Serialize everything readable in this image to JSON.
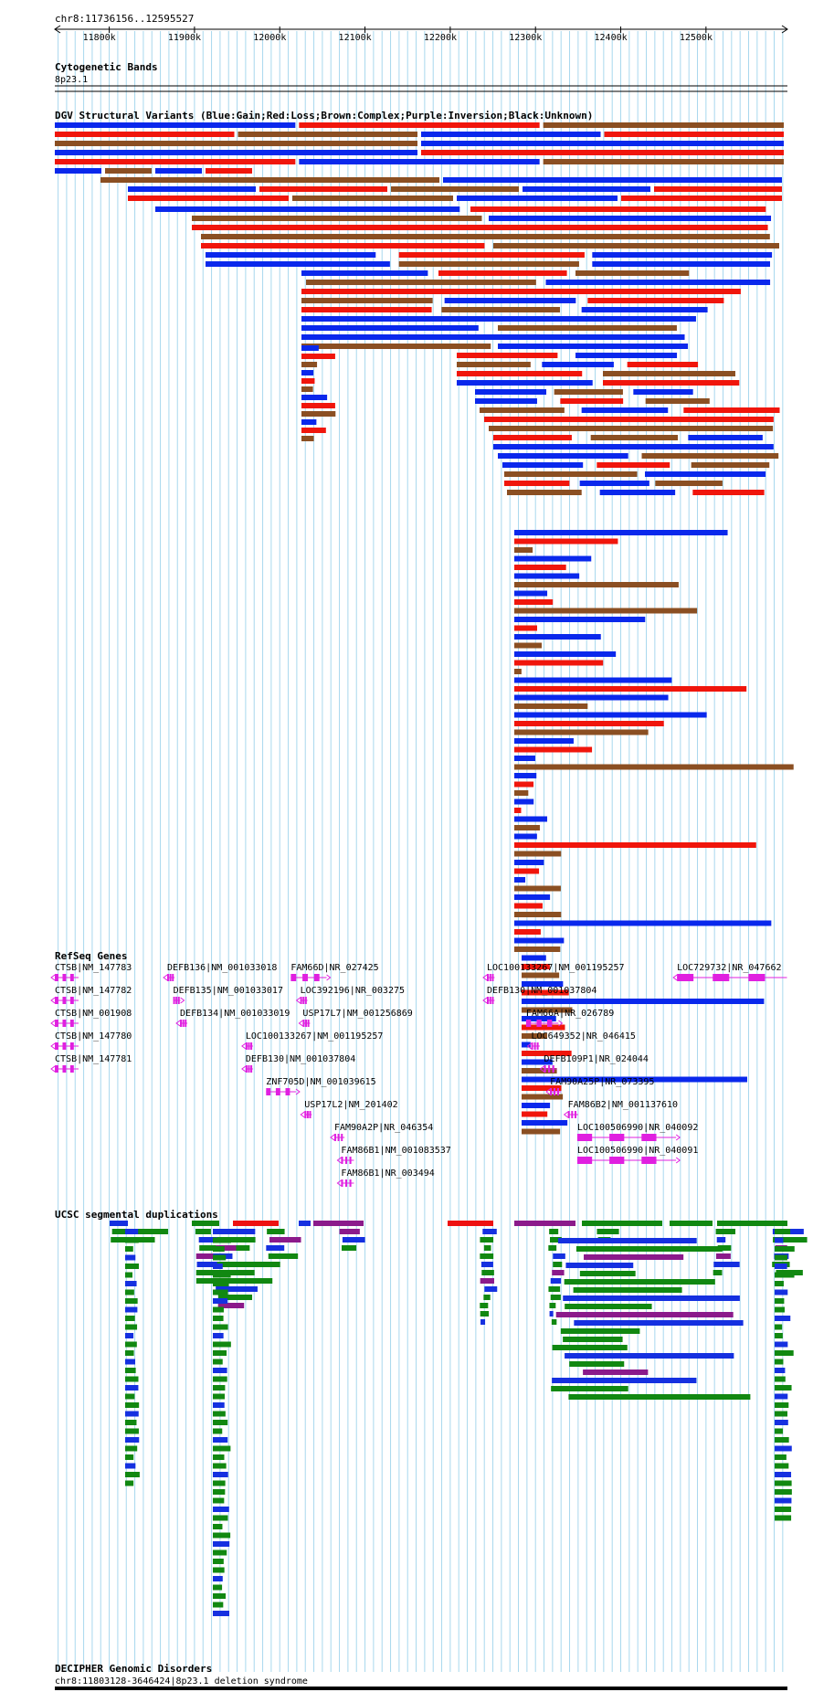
{
  "ruler": {
    "region_label": "chr8:11736156..12595527",
    "region_start_bp": 11736156,
    "region_end_bp": 12595527,
    "ticks": [
      {
        "bp": 11800000,
        "label": "11800k"
      },
      {
        "bp": 11900000,
        "label": "11900k"
      },
      {
        "bp": 12000000,
        "label": "12000k"
      },
      {
        "bp": 12100000,
        "label": "12100k"
      },
      {
        "bp": 12200000,
        "label": "12200k"
      },
      {
        "bp": 12300000,
        "label": "12300k"
      },
      {
        "bp": 12400000,
        "label": "12400k"
      },
      {
        "bp": 12500000,
        "label": "12500k"
      }
    ]
  },
  "cytoband": {
    "title": "Cytogenetic Bands",
    "band": "8p23.1"
  },
  "dgv": {
    "title": "DGV Structural Variants (Blue:Gain;Red:Loss;Brown:Complex;Purple:Inversion;Black:Unknown)",
    "colors": {
      "gain": "#0a28ec",
      "loss": "#f0160c",
      "complex": "#8b4f22",
      "inversion": "#8b1a8b",
      "unknown": "#000000"
    }
  },
  "refseq": {
    "title": "RefSeq Genes",
    "color": "#e020e0",
    "genes": [
      {
        "label": "CTSB|NM_147783",
        "start": 11736200,
        "end": 11764000,
        "strand": "-"
      },
      {
        "label": "CTSB|NM_147782",
        "start": 11736200,
        "end": 11764000,
        "strand": "-"
      },
      {
        "label": "CTSB|NM_001908",
        "start": 11736200,
        "end": 11764000,
        "strand": "-"
      },
      {
        "label": "CTSB|NM_147780",
        "start": 11736200,
        "end": 11764000,
        "strand": "-"
      },
      {
        "label": "CTSB|NM_147781",
        "start": 11736200,
        "end": 11764000,
        "strand": "-"
      },
      {
        "label": "DEFB136|NM_001033018",
        "start": 11868000,
        "end": 11871000,
        "strand": "-"
      },
      {
        "label": "DEFB135|NM_001033017",
        "start": 11875000,
        "end": 11878500,
        "strand": "+"
      },
      {
        "label": "DEFB134|NM_001033019",
        "start": 11883000,
        "end": 11887000,
        "strand": "-"
      },
      {
        "label": "LOC100133267|NM_001195257",
        "start": 11960000,
        "end": 11966000,
        "strand": "-"
      },
      {
        "label": "DEFB130|NM_001037804",
        "start": 11960000,
        "end": 11966000,
        "strand": "-"
      },
      {
        "label": "ZNF705D|NM_001039615",
        "start": 11984000,
        "end": 12019000,
        "strand": "+"
      },
      {
        "label": "FAM66D|NR_027425",
        "start": 12013000,
        "end": 12055000,
        "strand": "+"
      },
      {
        "label": "LOC392196|NR_003275",
        "start": 12024000,
        "end": 12031000,
        "strand": "-"
      },
      {
        "label": "USP17L7|NM_001256869",
        "start": 12027000,
        "end": 12030000,
        "strand": "-"
      },
      {
        "label": "USP17L2|NM_201402",
        "start": 12029000,
        "end": 12034000,
        "strand": "-"
      },
      {
        "label": "FAM90A2P|NR_046354",
        "start": 12064000,
        "end": 12076000,
        "strand": "-"
      },
      {
        "label": "FAM86B1|NM_001083537",
        "start": 12072000,
        "end": 12087000,
        "strand": "-"
      },
      {
        "label": "FAM86B1|NR_003494",
        "start": 12072000,
        "end": 12087000,
        "strand": "-"
      },
      {
        "label": "LOC100133267|NM_001195257",
        "start": 12243000,
        "end": 12252000,
        "strand": "-"
      },
      {
        "label": "DEFB130|NM_001037804",
        "start": 12243000,
        "end": 12252000,
        "strand": "-"
      },
      {
        "label": "FAM66A|NR_026789",
        "start": 12289000,
        "end": 12327000,
        "strand": "+"
      },
      {
        "label": "LOC649352|NR_046415",
        "start": 12295000,
        "end": 12305000,
        "strand": "-"
      },
      {
        "label": "DEFB109P1|NR_024044",
        "start": 12310000,
        "end": 12325000,
        "strand": "-"
      },
      {
        "label": "FAM90A25P|NR_073395",
        "start": 12317000,
        "end": 12330000,
        "strand": "-"
      },
      {
        "label": "FAM86B2|NM_001137610",
        "start": 12338000,
        "end": 12350000,
        "strand": "-"
      },
      {
        "label": "LOC100506990|NR_040092",
        "start": 12349000,
        "end": 12465000,
        "strand": "+"
      },
      {
        "label": "LOC100506990|NR_040091",
        "start": 12349000,
        "end": 12465000,
        "strand": "+"
      },
      {
        "label": "LOC729732|NR_047662",
        "start": 12466000,
        "end": 12595000,
        "strand": "-"
      }
    ]
  },
  "segdups": {
    "title": "UCSC segmental duplications",
    "colors": {
      "high": "#ee1111",
      "purple": "#8b1a8b",
      "green": "#118811",
      "blue": "#1530e0"
    }
  },
  "decipher": {
    "title": "DECIPHER Genomic Disorders",
    "entry": "chr8:11803128-3646424|8p23.1 deletion syndrome"
  }
}
